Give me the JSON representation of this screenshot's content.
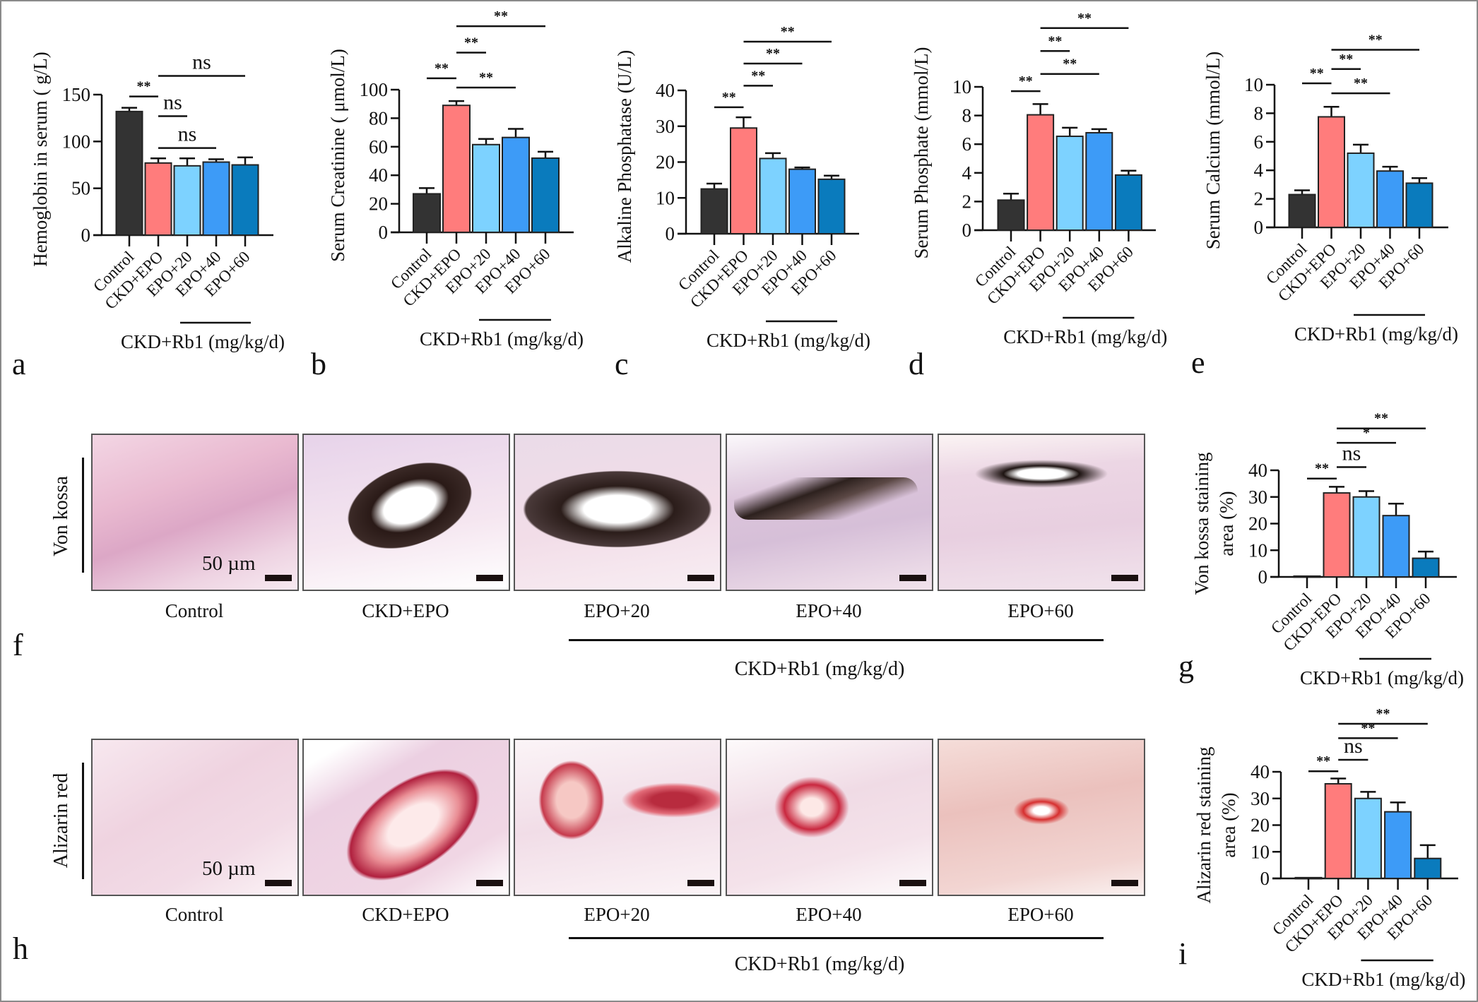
{
  "colors": {
    "Control": "#333333",
    "CKD+EPO": "#ff7c7c",
    "EPO+20": "#7dd2ff",
    "EPO+40": "#3d9bf7",
    "EPO+60": "#0a7bbd",
    "ink": "#111111"
  },
  "chart_data": [
    {
      "panel_label": "a",
      "type": "bar",
      "categories": [
        "Control",
        "CKD+EPO",
        "EPO+20",
        "EPO+40",
        "EPO+60"
      ],
      "values": [
        132,
        77,
        74,
        78,
        75
      ],
      "errors": [
        4,
        5,
        8,
        3,
        8
      ],
      "ylabel": "Hemoglobin  in serum ( g/L)",
      "ylim": [
        0,
        150
      ],
      "yticks": [
        0,
        50,
        100,
        150
      ],
      "comparisons": [
        {
          "from": "Control",
          "to": "CKD+EPO",
          "label": "**"
        },
        {
          "from": "CKD+EPO",
          "to": "EPO+20",
          "label": "ns"
        },
        {
          "from": "CKD+EPO",
          "to": "EPO+40",
          "label": "ns"
        },
        {
          "from": "CKD+EPO",
          "to": "EPO+60",
          "label": "ns"
        }
      ],
      "group_label": "CKD+Rb1 (mg/kg/d)"
    },
    {
      "panel_label": "b",
      "type": "bar",
      "categories": [
        "Control",
        "CKD+EPO",
        "EPO+20",
        "EPO+40",
        "EPO+60"
      ],
      "values": [
        27,
        89,
        61.5,
        66.5,
        52
      ],
      "errors": [
        4,
        3,
        4,
        6,
        4.5
      ],
      "ylabel": "Serum Creatinine ( μmol/L)",
      "ylim": [
        0,
        100
      ],
      "yticks": [
        0,
        20,
        40,
        60,
        80,
        100
      ],
      "comparisons": [
        {
          "from": "Control",
          "to": "CKD+EPO",
          "label": "**"
        },
        {
          "from": "CKD+EPO",
          "to": "EPO+20",
          "label": "**"
        },
        {
          "from": "CKD+EPO",
          "to": "EPO+40",
          "label": "**"
        },
        {
          "from": "CKD+EPO",
          "to": "EPO+60",
          "label": "**"
        }
      ],
      "group_label": "CKD+Rb1 (mg/kg/d)"
    },
    {
      "panel_label": "c",
      "type": "bar",
      "categories": [
        "Control",
        "CKD+EPO",
        "EPO+20",
        "EPO+40",
        "EPO+60"
      ],
      "values": [
        12.5,
        29.5,
        21,
        18,
        15.2
      ],
      "errors": [
        1.5,
        3,
        1.5,
        0.5,
        1
      ],
      "ylabel": "Alkaline Phosphatase  (U/L)",
      "ylim": [
        0,
        40
      ],
      "yticks": [
        0,
        10,
        20,
        30,
        40
      ],
      "comparisons": [
        {
          "from": "Control",
          "to": "CKD+EPO",
          "label": "**"
        },
        {
          "from": "CKD+EPO",
          "to": "EPO+20",
          "label": "**"
        },
        {
          "from": "CKD+EPO",
          "to": "EPO+40",
          "label": "**"
        },
        {
          "from": "CKD+EPO",
          "to": "EPO+60",
          "label": "**"
        }
      ],
      "group_label": "CKD+Rb1 (mg/kg/d)"
    },
    {
      "panel_label": "d",
      "type": "bar",
      "categories": [
        "Control",
        "CKD+EPO",
        "EPO+20",
        "EPO+40",
        "EPO+60"
      ],
      "values": [
        2.1,
        8.05,
        6.55,
        6.8,
        3.85
      ],
      "errors": [
        0.45,
        0.75,
        0.6,
        0.25,
        0.3
      ],
      "ylabel": "Serum Phosphate  (mmol/L)",
      "ylim": [
        0,
        10
      ],
      "yticks": [
        0,
        2,
        4,
        6,
        8,
        10
      ],
      "comparisons": [
        {
          "from": "Control",
          "to": "CKD+EPO",
          "label": "**"
        },
        {
          "from": "CKD+EPO",
          "to": "EPO+20",
          "label": "**"
        },
        {
          "from": "CKD+EPO",
          "to": "EPO+40",
          "label": "**"
        },
        {
          "from": "CKD+EPO",
          "to": "EPO+60",
          "label": "**"
        }
      ],
      "group_label": "CKD+Rb1 (mg/kg/d)"
    },
    {
      "panel_label": "e",
      "type": "bar",
      "categories": [
        "Control",
        "CKD+EPO",
        "EPO+20",
        "EPO+40",
        "EPO+60"
      ],
      "values": [
        2.3,
        7.75,
        5.2,
        3.95,
        3.1
      ],
      "errors": [
        0.3,
        0.7,
        0.6,
        0.3,
        0.35
      ],
      "ylabel": "Serum Calcium (mmol/L)",
      "ylim": [
        0,
        10
      ],
      "yticks": [
        0,
        2,
        4,
        6,
        8,
        10
      ],
      "comparisons": [
        {
          "from": "Control",
          "to": "CKD+EPO",
          "label": "**"
        },
        {
          "from": "CKD+EPO",
          "to": "EPO+20",
          "label": "**"
        },
        {
          "from": "CKD+EPO",
          "to": "EPO+40",
          "label": "**"
        },
        {
          "from": "CKD+EPO",
          "to": "EPO+60",
          "label": "**"
        }
      ],
      "group_label": "CKD+Rb1 (mg/kg/d)"
    },
    {
      "panel_label": "g",
      "type": "bar",
      "categories": [
        "Control",
        "CKD+EPO",
        "EPO+20",
        "EPO+40",
        "EPO+60"
      ],
      "values": [
        0.3,
        31.5,
        30,
        23,
        7
      ],
      "errors": [
        0,
        2.3,
        2.2,
        4.5,
        2.5
      ],
      "ylabel": [
        "Von kossa staining",
        "area (%)"
      ],
      "ylim": [
        0,
        40
      ],
      "yticks": [
        0,
        10,
        20,
        30,
        40
      ],
      "comparisons": [
        {
          "from": "Control",
          "to": "CKD+EPO",
          "label": "**"
        },
        {
          "from": "CKD+EPO",
          "to": "EPO+20",
          "label": "ns"
        },
        {
          "from": "CKD+EPO",
          "to": "EPO+40",
          "label": "*"
        },
        {
          "from": "CKD+EPO",
          "to": "EPO+60",
          "label": "**"
        }
      ],
      "group_label": "CKD+Rb1 (mg/kg/d)"
    },
    {
      "panel_label": "i",
      "type": "bar",
      "categories": [
        "Control",
        "CKD+EPO",
        "EPO+20",
        "EPO+40",
        "EPO+60"
      ],
      "values": [
        0.3,
        35.5,
        30,
        25,
        7.5
      ],
      "errors": [
        0,
        2,
        2.5,
        3.5,
        5
      ],
      "ylabel": [
        "Alizarin red staining",
        "area (%)"
      ],
      "ylim": [
        0,
        40
      ],
      "yticks": [
        0,
        10,
        20,
        30,
        40
      ],
      "comparisons": [
        {
          "from": "Control",
          "to": "CKD+EPO",
          "label": "**"
        },
        {
          "from": "CKD+EPO",
          "to": "EPO+20",
          "label": "ns"
        },
        {
          "from": "CKD+EPO",
          "to": "EPO+40",
          "label": "**"
        },
        {
          "from": "CKD+EPO",
          "to": "EPO+60",
          "label": "**"
        }
      ],
      "group_label": "CKD+Rb1 (mg/kg/d)"
    }
  ],
  "histology": [
    {
      "panel_label": "f",
      "stain": "Von kossa",
      "scale_bar": "50 µm",
      "labels": [
        "Control",
        "CKD+EPO",
        "EPO+20",
        "EPO+40",
        "EPO+60"
      ],
      "group_label": "CKD+Rb1 (mg/kg/d)"
    },
    {
      "panel_label": "h",
      "stain": "Alizarin red",
      "scale_bar": "50 µm",
      "labels": [
        "Control",
        "CKD+EPO",
        "EPO+20",
        "EPO+40",
        "EPO+60"
      ],
      "group_label": "CKD+Rb1 (mg/kg/d)"
    }
  ]
}
